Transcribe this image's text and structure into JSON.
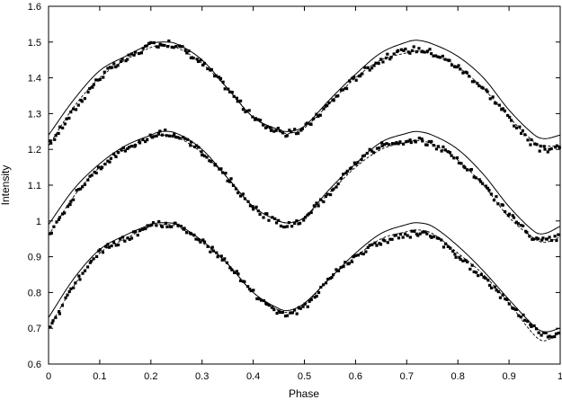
{
  "chart_data": {
    "type": "scatter",
    "title": "",
    "xlabel": "Phase",
    "ylabel": "Intensity",
    "xlim": [
      0,
      1
    ],
    "ylim": [
      0.6,
      1.6
    ],
    "xticks": [
      0,
      0.1,
      0.2,
      0.3,
      0.4,
      0.5,
      0.6,
      0.7,
      0.8,
      0.9,
      1
    ],
    "xtick_labels": [
      "0",
      "0.1",
      "0.2",
      "0.3",
      "0.4",
      "0.5",
      "0.6",
      "0.7",
      "0.8",
      "0.9",
      "1"
    ],
    "yticks": [
      0.6,
      0.7,
      0.8,
      0.9,
      1.0,
      1.1,
      1.2,
      1.3,
      1.4,
      1.5,
      1.6
    ],
    "ytick_labels": [
      "0.6",
      "0.7",
      "0.8",
      "0.9",
      "1",
      "1.1",
      "1.2",
      "1.3",
      "1.4",
      "1.5",
      "1.6"
    ],
    "grid": false,
    "legend": false,
    "colors": {
      "points": "#000000",
      "lines": "#000000",
      "background": "#ffffff"
    },
    "phase": [
      0.0,
      0.05,
      0.1,
      0.15,
      0.2,
      0.22,
      0.25,
      0.3,
      0.35,
      0.4,
      0.45,
      0.47,
      0.5,
      0.55,
      0.6,
      0.65,
      0.7,
      0.72,
      0.75,
      0.8,
      0.85,
      0.9,
      0.95,
      0.97,
      1.0
    ],
    "series": [
      {
        "points": [
          1.21,
          1.31,
          1.4,
          1.45,
          1.49,
          1.495,
          1.49,
          1.44,
          1.37,
          1.29,
          1.25,
          1.245,
          1.26,
          1.33,
          1.4,
          1.45,
          1.475,
          1.48,
          1.47,
          1.43,
          1.37,
          1.29,
          1.21,
          1.2,
          1.21
        ],
        "solid": [
          1.24,
          1.34,
          1.42,
          1.46,
          1.495,
          1.5,
          1.495,
          1.45,
          1.37,
          1.29,
          1.255,
          1.25,
          1.265,
          1.34,
          1.41,
          1.47,
          1.5,
          1.505,
          1.495,
          1.46,
          1.4,
          1.31,
          1.24,
          1.23,
          1.24
        ],
        "dashed": [
          1.21,
          1.32,
          1.4,
          1.45,
          1.485,
          1.49,
          1.485,
          1.44,
          1.37,
          1.29,
          1.25,
          1.245,
          1.26,
          1.33,
          1.4,
          1.45,
          1.47,
          1.475,
          1.465,
          1.43,
          1.37,
          1.29,
          1.22,
          1.21,
          1.21
        ]
      },
      {
        "points": [
          0.96,
          1.07,
          1.15,
          1.2,
          1.235,
          1.245,
          1.24,
          1.19,
          1.12,
          1.04,
          0.995,
          0.99,
          1.01,
          1.08,
          1.16,
          1.21,
          1.225,
          1.225,
          1.215,
          1.17,
          1.1,
          1.02,
          0.95,
          0.945,
          0.955
        ],
        "solid": [
          0.99,
          1.09,
          1.16,
          1.21,
          1.24,
          1.25,
          1.245,
          1.2,
          1.12,
          1.04,
          1.0,
          0.995,
          1.01,
          1.09,
          1.16,
          1.22,
          1.245,
          1.25,
          1.24,
          1.2,
          1.13,
          1.04,
          0.97,
          0.965,
          0.985
        ],
        "dashed": [
          0.96,
          1.07,
          1.15,
          1.2,
          1.235,
          1.24,
          1.235,
          1.19,
          1.12,
          1.04,
          1.0,
          0.995,
          1.01,
          1.08,
          1.15,
          1.2,
          1.22,
          1.225,
          1.215,
          1.17,
          1.1,
          1.01,
          0.95,
          0.94,
          0.955
        ]
      },
      {
        "points": [
          0.69,
          0.82,
          0.91,
          0.95,
          0.985,
          0.99,
          0.985,
          0.94,
          0.88,
          0.8,
          0.745,
          0.74,
          0.76,
          0.84,
          0.9,
          0.94,
          0.96,
          0.965,
          0.955,
          0.9,
          0.84,
          0.77,
          0.7,
          0.68,
          0.685
        ],
        "solid": [
          0.73,
          0.84,
          0.92,
          0.96,
          0.99,
          0.995,
          0.99,
          0.945,
          0.88,
          0.8,
          0.755,
          0.75,
          0.77,
          0.84,
          0.91,
          0.965,
          0.99,
          0.995,
          0.985,
          0.93,
          0.86,
          0.78,
          0.705,
          0.69,
          0.7
        ],
        "dashed": [
          0.7,
          0.82,
          0.91,
          0.95,
          0.985,
          0.99,
          0.985,
          0.94,
          0.88,
          0.8,
          0.75,
          0.745,
          0.765,
          0.84,
          0.9,
          0.95,
          0.97,
          0.975,
          0.965,
          0.91,
          0.85,
          0.77,
          0.68,
          0.665,
          0.69
        ]
      }
    ]
  }
}
